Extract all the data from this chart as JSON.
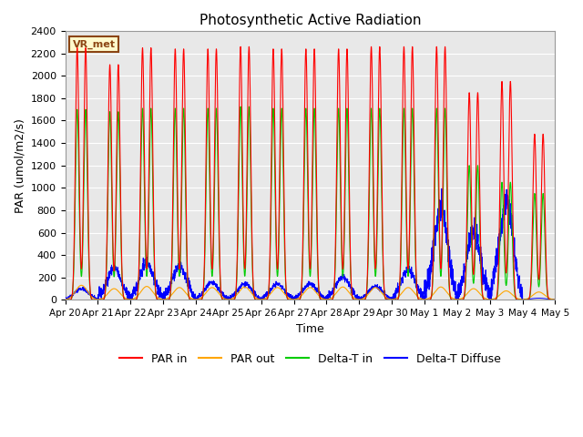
{
  "title": "Photosynthetic Active Radiation",
  "ylabel": "PAR (umol/m2/s)",
  "xlabel": "Time",
  "annotation": "VR_met",
  "ylim": [
    0,
    2400
  ],
  "yticks": [
    0,
    200,
    400,
    600,
    800,
    1000,
    1200,
    1400,
    1600,
    1800,
    2000,
    2200,
    2400
  ],
  "x_tick_labels": [
    "Apr 20",
    "Apr 21",
    "Apr 22",
    "Apr 23",
    "Apr 24",
    "Apr 25",
    "Apr 26",
    "Apr 27",
    "Apr 28",
    "Apr 29",
    "Apr 30",
    "May 1",
    "May 2",
    "May 3",
    "May 4",
    "May 5"
  ],
  "colors": {
    "PAR_in": "#FF0000",
    "PAR_out": "#FFA500",
    "Delta_T_in": "#00CC00",
    "Delta_T_Diffuse": "#0000FF",
    "background": "#E8E8E8",
    "grid": "#FFFFFF"
  },
  "legend_labels": [
    "PAR in",
    "PAR out",
    "Delta-T in",
    "Delta-T Diffuse"
  ],
  "par_in_peaks": [
    2250,
    2100,
    2250,
    2240,
    2240,
    2260,
    2240,
    2240,
    2240,
    2260,
    2260,
    2260,
    1850,
    1950,
    1480
  ],
  "delta_t_peaks": [
    1700,
    1680,
    1710,
    1710,
    1710,
    1725,
    1710,
    1710,
    1710,
    1710,
    1710,
    1710,
    1200,
    1050,
    950
  ],
  "par_out_peaks": [
    130,
    100,
    120,
    110,
    110,
    115,
    110,
    110,
    115,
    110,
    110,
    115,
    100,
    80,
    70
  ],
  "diffuse_peaks": [
    100,
    280,
    330,
    300,
    150,
    140,
    140,
    140,
    200,
    120,
    270,
    800,
    600,
    850,
    0
  ],
  "days": 15
}
